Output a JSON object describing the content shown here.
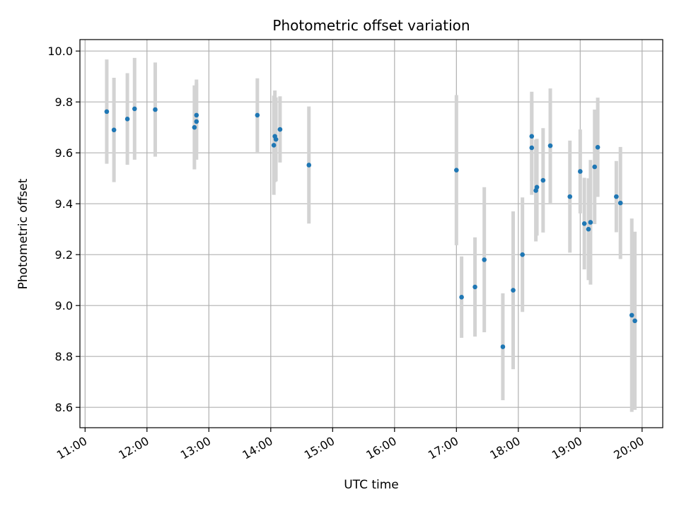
{
  "chart_data": {
    "type": "scatter",
    "title": "Photometric offset variation",
    "xlabel": "UTC time",
    "ylabel": "Photometric offset",
    "xlim": [
      "10:55",
      "20:20"
    ],
    "ylim": [
      8.52,
      10.045
    ],
    "grid": true,
    "x_ticks": [
      "11:00",
      "12:00",
      "13:00",
      "14:00",
      "15:00",
      "16:00",
      "17:00",
      "18:00",
      "19:00",
      "20:00"
    ],
    "y_ticks": [
      8.6,
      8.8,
      9.0,
      9.2,
      9.4,
      9.6,
      9.8,
      10.0
    ],
    "colors": {
      "points": "#1f77b4",
      "error_bars": "#d3d3d3",
      "grid": "#b0b0b0"
    },
    "points": [
      {
        "x": "11:21",
        "y": 9.762,
        "err": 0.205
      },
      {
        "x": "11:28",
        "y": 9.69,
        "err": 0.205
      },
      {
        "x": "11:41",
        "y": 9.733,
        "err": 0.18
      },
      {
        "x": "11:48",
        "y": 9.773,
        "err": 0.2
      },
      {
        "x": "12:08",
        "y": 9.77,
        "err": 0.185
      },
      {
        "x": "12:46",
        "y": 9.7,
        "err": 0.165
      },
      {
        "x": "12:48",
        "y": 9.748,
        "err": 0.14
      },
      {
        "x": "12:48",
        "y": 9.723,
        "err": 0.15
      },
      {
        "x": "13:47",
        "y": 9.748,
        "err": 0.145
      },
      {
        "x": "14:03",
        "y": 9.63,
        "err": 0.195
      },
      {
        "x": "14:04",
        "y": 9.665,
        "err": 0.18
      },
      {
        "x": "14:05",
        "y": 9.653,
        "err": 0.165
      },
      {
        "x": "14:09",
        "y": 9.692,
        "err": 0.13
      },
      {
        "x": "14:37",
        "y": 9.552,
        "err": 0.23
      },
      {
        "x": "17:00",
        "y": 9.532,
        "err": 0.295
      },
      {
        "x": "17:05",
        "y": 9.033,
        "err": 0.16
      },
      {
        "x": "17:18",
        "y": 9.073,
        "err": 0.195
      },
      {
        "x": "17:27",
        "y": 9.18,
        "err": 0.285
      },
      {
        "x": "17:45",
        "y": 8.838,
        "err": 0.21
      },
      {
        "x": "17:55",
        "y": 9.06,
        "err": 0.31
      },
      {
        "x": "18:04",
        "y": 9.2,
        "err": 0.225
      },
      {
        "x": "18:13",
        "y": 9.62,
        "err": 0.185
      },
      {
        "x": "18:13",
        "y": 9.665,
        "err": 0.175
      },
      {
        "x": "18:17",
        "y": 9.452,
        "err": 0.2
      },
      {
        "x": "18:18",
        "y": 9.465,
        "err": 0.19
      },
      {
        "x": "18:24",
        "y": 9.492,
        "err": 0.205
      },
      {
        "x": "18:31",
        "y": 9.628,
        "err": 0.225
      },
      {
        "x": "18:50",
        "y": 9.428,
        "err": 0.22
      },
      {
        "x": "19:00",
        "y": 9.527,
        "err": 0.165
      },
      {
        "x": "19:04",
        "y": 9.322,
        "err": 0.18
      },
      {
        "x": "19:08",
        "y": 9.3,
        "err": 0.2
      },
      {
        "x": "19:10",
        "y": 9.327,
        "err": 0.245
      },
      {
        "x": "19:14",
        "y": 9.545,
        "err": 0.225
      },
      {
        "x": "19:17",
        "y": 9.622,
        "err": 0.195
      },
      {
        "x": "19:35",
        "y": 9.428,
        "err": 0.14
      },
      {
        "x": "19:39",
        "y": 9.403,
        "err": 0.22
      },
      {
        "x": "19:50",
        "y": 8.962,
        "err": 0.38
      },
      {
        "x": "19:53",
        "y": 8.94,
        "err": 0.35
      }
    ]
  }
}
